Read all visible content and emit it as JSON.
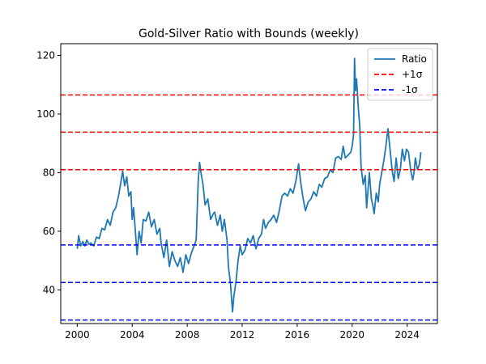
{
  "chart_data": {
    "type": "line",
    "title": "Gold-Silver Ratio with Bounds (weekly)",
    "xlabel": "",
    "ylabel": "",
    "xlim": [
      1998.8,
      2026.2
    ],
    "ylim": [
      28.5,
      124
    ],
    "x_ticks": [
      2000,
      2004,
      2008,
      2012,
      2016,
      2020,
      2024
    ],
    "y_ticks": [
      40,
      60,
      80,
      100,
      120
    ],
    "grid": false,
    "legend": {
      "placement": "top-right",
      "entries": [
        {
          "label": "Ratio",
          "color": "#1f77b4",
          "style": "solid"
        },
        {
          "label": "+1σ",
          "color": "#ff0000",
          "style": "dashed"
        },
        {
          "label": "-1σ",
          "color": "#0000ff",
          "style": "dashed"
        }
      ]
    },
    "series": [
      {
        "name": "Ratio",
        "color": "#1f77b4",
        "points": [
          [
            2000.0,
            54
          ],
          [
            2000.1,
            58.5
          ],
          [
            2000.25,
            55
          ],
          [
            2000.4,
            56.5
          ],
          [
            2000.55,
            55
          ],
          [
            2000.7,
            57
          ],
          [
            2000.85,
            55.5
          ],
          [
            2001.0,
            56
          ],
          [
            2001.2,
            55
          ],
          [
            2001.4,
            58
          ],
          [
            2001.6,
            57.5
          ],
          [
            2001.8,
            61
          ],
          [
            2002.0,
            60.5
          ],
          [
            2002.2,
            64
          ],
          [
            2002.4,
            62
          ],
          [
            2002.6,
            66.5
          ],
          [
            2002.8,
            68
          ],
          [
            2003.0,
            72
          ],
          [
            2003.15,
            76
          ],
          [
            2003.3,
            80.5
          ],
          [
            2003.45,
            75.5
          ],
          [
            2003.6,
            78.5
          ],
          [
            2003.75,
            72
          ],
          [
            2003.9,
            73.5
          ],
          [
            2004.0,
            64
          ],
          [
            2004.1,
            68
          ],
          [
            2004.2,
            62
          ],
          [
            2004.35,
            52
          ],
          [
            2004.5,
            60
          ],
          [
            2004.65,
            56
          ],
          [
            2004.8,
            64
          ],
          [
            2005.0,
            63.5
          ],
          [
            2005.2,
            66.5
          ],
          [
            2005.4,
            61.5
          ],
          [
            2005.6,
            64
          ],
          [
            2005.8,
            59
          ],
          [
            2006.0,
            61
          ],
          [
            2006.1,
            56
          ],
          [
            2006.3,
            51
          ],
          [
            2006.5,
            57
          ],
          [
            2006.7,
            48
          ],
          [
            2006.9,
            53
          ],
          [
            2007.1,
            50
          ],
          [
            2007.3,
            48
          ],
          [
            2007.5,
            51
          ],
          [
            2007.7,
            46
          ],
          [
            2007.9,
            52
          ],
          [
            2008.1,
            49
          ],
          [
            2008.3,
            52.5
          ],
          [
            2008.5,
            55
          ],
          [
            2008.65,
            57
          ],
          [
            2008.8,
            77
          ],
          [
            2008.9,
            83.5
          ],
          [
            2009.0,
            80
          ],
          [
            2009.15,
            76
          ],
          [
            2009.3,
            69
          ],
          [
            2009.5,
            71
          ],
          [
            2009.7,
            64
          ],
          [
            2009.9,
            66
          ],
          [
            2010.0,
            66.5
          ],
          [
            2010.2,
            62
          ],
          [
            2010.4,
            65.5
          ],
          [
            2010.55,
            60
          ],
          [
            2010.7,
            64
          ],
          [
            2010.9,
            57
          ],
          [
            2011.0,
            48
          ],
          [
            2011.15,
            42
          ],
          [
            2011.3,
            32.5
          ],
          [
            2011.4,
            38
          ],
          [
            2011.55,
            43
          ],
          [
            2011.7,
            50
          ],
          [
            2011.85,
            55
          ],
          [
            2012.0,
            52
          ],
          [
            2012.2,
            53.5
          ],
          [
            2012.4,
            57.5
          ],
          [
            2012.6,
            56
          ],
          [
            2012.8,
            58.5
          ],
          [
            2013.0,
            54
          ],
          [
            2013.2,
            57.5
          ],
          [
            2013.4,
            59
          ],
          [
            2013.55,
            64
          ],
          [
            2013.7,
            61
          ],
          [
            2013.9,
            63
          ],
          [
            2014.1,
            64
          ],
          [
            2014.3,
            65.5
          ],
          [
            2014.5,
            63
          ],
          [
            2014.7,
            67
          ],
          [
            2014.9,
            72
          ],
          [
            2015.1,
            73
          ],
          [
            2015.3,
            72
          ],
          [
            2015.5,
            74.5
          ],
          [
            2015.7,
            73
          ],
          [
            2015.9,
            77
          ],
          [
            2016.0,
            80
          ],
          [
            2016.1,
            83
          ],
          [
            2016.25,
            77
          ],
          [
            2016.4,
            72
          ],
          [
            2016.6,
            67
          ],
          [
            2016.8,
            70
          ],
          [
            2017.0,
            71
          ],
          [
            2017.2,
            73.5
          ],
          [
            2017.4,
            72
          ],
          [
            2017.6,
            76
          ],
          [
            2017.8,
            75
          ],
          [
            2018.0,
            78
          ],
          [
            2018.2,
            78.5
          ],
          [
            2018.4,
            81
          ],
          [
            2018.6,
            80
          ],
          [
            2018.8,
            85
          ],
          [
            2019.0,
            85.5
          ],
          [
            2019.2,
            84.5
          ],
          [
            2019.35,
            89
          ],
          [
            2019.5,
            85
          ],
          [
            2019.7,
            86
          ],
          [
            2019.9,
            87
          ],
          [
            2020.0,
            89
          ],
          [
            2020.1,
            93
          ],
          [
            2020.17,
            119
          ],
          [
            2020.25,
            108
          ],
          [
            2020.32,
            112
          ],
          [
            2020.45,
            102
          ],
          [
            2020.55,
            96
          ],
          [
            2020.65,
            82
          ],
          [
            2020.8,
            76
          ],
          [
            2020.95,
            79
          ],
          [
            2021.05,
            68
          ],
          [
            2021.15,
            74
          ],
          [
            2021.25,
            80
          ],
          [
            2021.4,
            71
          ],
          [
            2021.5,
            69
          ],
          [
            2021.6,
            66
          ],
          [
            2021.75,
            73
          ],
          [
            2021.9,
            70
          ],
          [
            2022.0,
            76
          ],
          [
            2022.15,
            80
          ],
          [
            2022.3,
            84
          ],
          [
            2022.45,
            89
          ],
          [
            2022.6,
            95
          ],
          [
            2022.75,
            88
          ],
          [
            2022.9,
            81
          ],
          [
            2023.05,
            77
          ],
          [
            2023.2,
            85
          ],
          [
            2023.35,
            78
          ],
          [
            2023.5,
            81
          ],
          [
            2023.65,
            88
          ],
          [
            2023.8,
            84
          ],
          [
            2023.95,
            88
          ],
          [
            2024.1,
            87
          ],
          [
            2024.25,
            81
          ],
          [
            2024.4,
            77.5
          ],
          [
            2024.5,
            80
          ],
          [
            2024.6,
            85
          ],
          [
            2024.75,
            81
          ],
          [
            2024.9,
            83
          ],
          [
            2025.0,
            87
          ]
        ]
      },
      {
        "name": "+1σ",
        "color": "#ff0000",
        "style": "dashed",
        "levels": [
          106.5,
          93.8,
          81.0
        ]
      },
      {
        "name": "-1σ",
        "color": "#0000ff",
        "style": "dashed",
        "levels": [
          55.3,
          42.5,
          29.7
        ]
      }
    ]
  }
}
